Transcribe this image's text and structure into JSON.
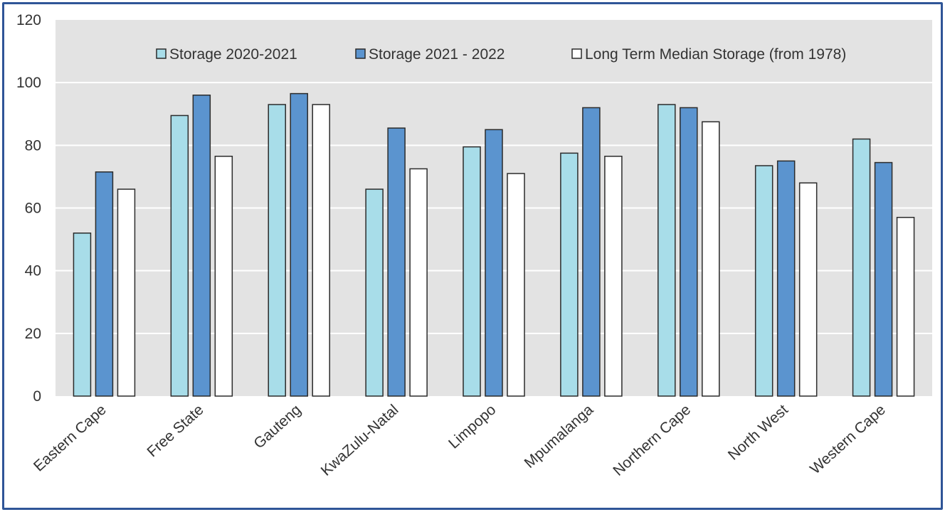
{
  "chart_data": {
    "type": "bar",
    "title": "",
    "xlabel": "",
    "ylabel": "",
    "ylim": [
      0,
      120
    ],
    "yticks": [
      0,
      20,
      40,
      60,
      80,
      100,
      120
    ],
    "grid": true,
    "legend_position": "top-right",
    "categories": [
      "Eastern Cape",
      "Free State",
      "Gauteng",
      "KwaZulu-Natal",
      "Limpopo",
      "Mpumalanga",
      "Northern Cape",
      "North West",
      "Western Cape"
    ],
    "series": [
      {
        "name": "Storage 2020-2021",
        "color": "#a8dde9",
        "values": [
          52,
          89.5,
          93,
          66,
          79.5,
          77.5,
          93,
          73.5,
          82
        ]
      },
      {
        "name": "Storage 2021 - 2022",
        "color": "#5b94cf",
        "values": [
          71.5,
          96,
          96.5,
          85.5,
          85,
          92,
          92,
          75,
          74.5
        ]
      },
      {
        "name": "Long Term Median Storage (from 1978)",
        "color": "#ffffff",
        "values": [
          66,
          76.5,
          93,
          72.5,
          71,
          76.5,
          87.5,
          68,
          57
        ]
      }
    ],
    "colors": {
      "plot_background": "#e3e3e3",
      "gridline": "#ffffff",
      "bar_outline": "#2b2b2b",
      "frame": "#2f5597"
    }
  }
}
